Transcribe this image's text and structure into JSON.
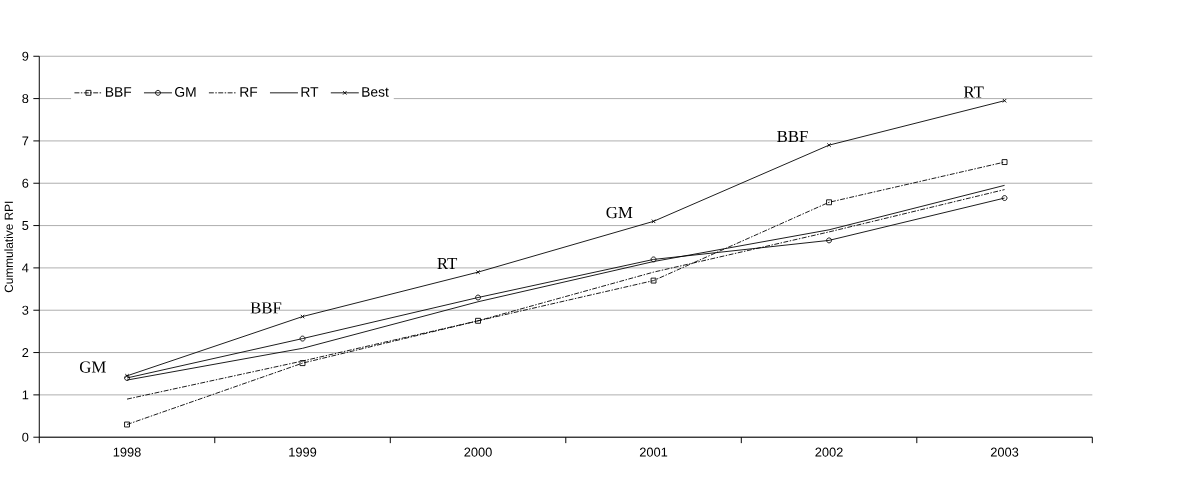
{
  "chart_data": {
    "type": "line",
    "ylabel": "Cummulative RPI",
    "categories": [
      "1998",
      "1999",
      "2000",
      "2001",
      "2002",
      "2003"
    ],
    "series": [
      {
        "name": "BBF",
        "color": "#000000",
        "marker": "square",
        "line_style": "dashdot",
        "values": [
          0.3,
          1.75,
          2.75,
          3.7,
          5.55,
          6.5
        ]
      },
      {
        "name": "GM",
        "color": "#000000",
        "marker": "circle",
        "line_style": "solid",
        "values": [
          1.4,
          2.33,
          3.3,
          4.2,
          4.65,
          5.65
        ]
      },
      {
        "name": "RF",
        "color": "#000000",
        "marker": "none",
        "line_style": "dashdot",
        "values": [
          0.9,
          1.8,
          2.75,
          3.9,
          4.85,
          5.85
        ]
      },
      {
        "name": "RT",
        "color": "#000000",
        "marker": "none",
        "line_style": "solid",
        "values": [
          1.35,
          2.1,
          3.2,
          4.15,
          4.9,
          5.95
        ]
      },
      {
        "name": "Best",
        "color": "#000000",
        "marker": "cross",
        "line_style": "solid",
        "values": [
          1.45,
          2.85,
          3.9,
          5.1,
          6.9,
          7.95
        ]
      }
    ],
    "annotations": [
      {
        "text": "GM",
        "x": "1998",
        "y": 1.45
      },
      {
        "text": "BBF",
        "x": "1999",
        "y": 2.85
      },
      {
        "text": "RT",
        "x": "2000",
        "y": 3.9
      },
      {
        "text": "GM",
        "x": "2001",
        "y": 5.1
      },
      {
        "text": "BBF",
        "x": "2002",
        "y": 6.9
      },
      {
        "text": "RT",
        "x": "2003",
        "y": 7.95
      }
    ],
    "ylim": [
      0,
      9
    ],
    "yticks": [
      0,
      1,
      2,
      3,
      4,
      5,
      6,
      7,
      8,
      9
    ],
    "grid": "y",
    "legend": "top left"
  }
}
